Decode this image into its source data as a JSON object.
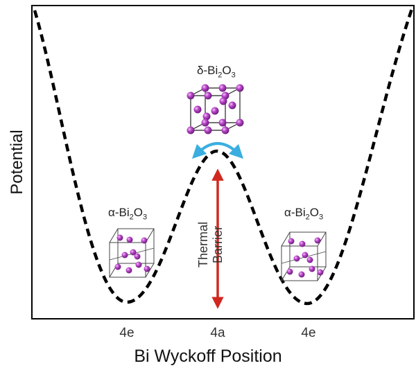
{
  "diagram": {
    "y_axis_label": "Potential",
    "x_axis_label": "Bi Wyckoff Position",
    "x_ticks": [
      "4e",
      "4a",
      "4e"
    ],
    "structures": {
      "center": {
        "prefix": "δ-Bi",
        "sub1": "2",
        "mid": "O",
        "sub2": "3"
      },
      "left": {
        "prefix": "α-Bi",
        "sub1": "2",
        "mid": "O",
        "sub2": "3"
      },
      "right": {
        "prefix": "α-Bi",
        "sub1": "2",
        "mid": "O",
        "sub2": "3"
      }
    },
    "barrier_label": "Thermal Barrier",
    "colors": {
      "curve": "#000000",
      "barrier_arrow": "#d0281f",
      "hop_arrow": "#3aaee0",
      "atom": "#a834b8",
      "atom_highlight": "#e9a8f0"
    }
  }
}
